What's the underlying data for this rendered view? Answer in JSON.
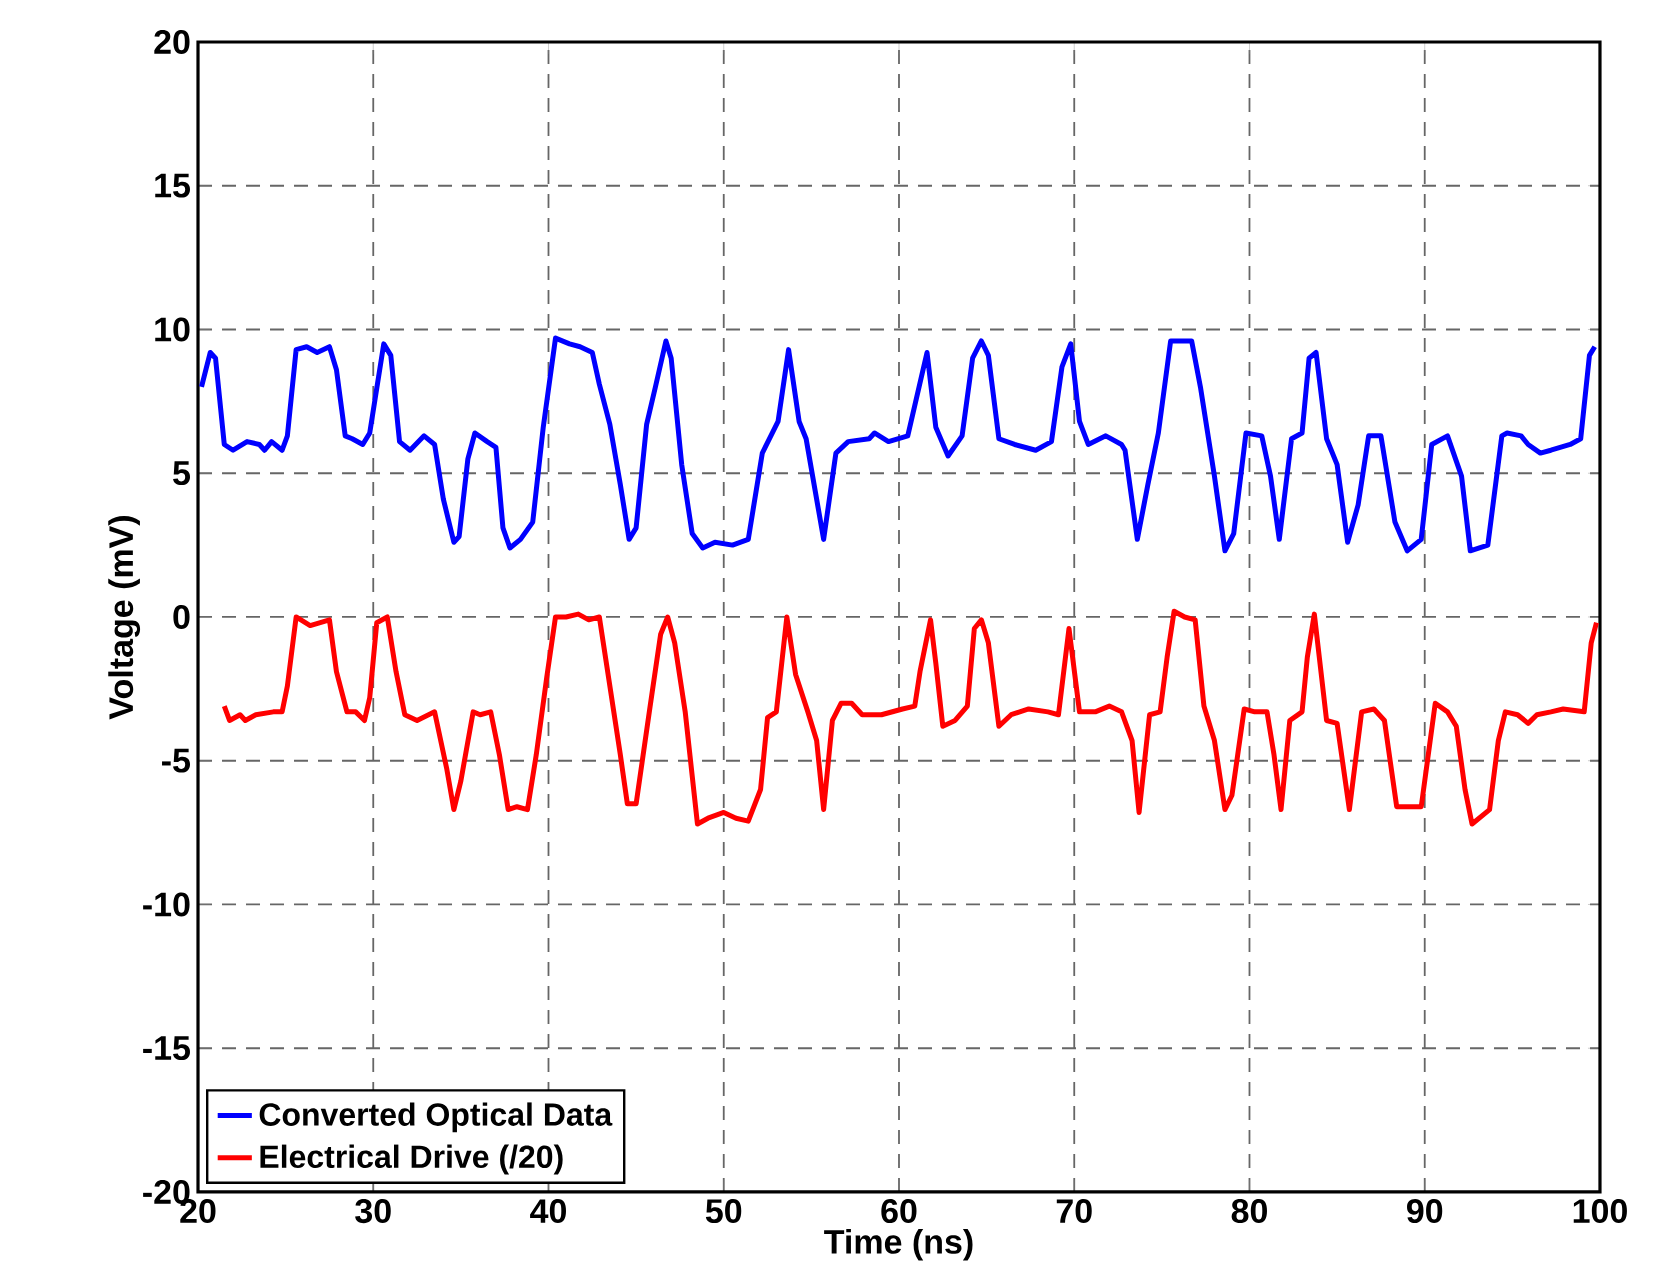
{
  "chart_data": {
    "type": "line",
    "xlabel": "Time (ns)",
    "ylabel": "Voltage (mV)",
    "xlim": [
      20,
      100
    ],
    "ylim": [
      -20,
      20
    ],
    "xticks": [
      20,
      30,
      40,
      50,
      60,
      70,
      80,
      90,
      100
    ],
    "yticks": [
      -20,
      -15,
      -10,
      -5,
      0,
      5,
      10,
      15,
      20
    ],
    "grid": true,
    "legend": "bottom left",
    "line_style": "solid",
    "marker": "none",
    "series": [
      {
        "name": "Converted Optical Data",
        "color": "#0000ff",
        "x": [
          20.2,
          20.7,
          21.0,
          21.5,
          22.0,
          22.8,
          23.5,
          23.8,
          24.2,
          24.8,
          25.1,
          25.6,
          26.2,
          26.8,
          27.5,
          27.9,
          28.4,
          28.8,
          29.4,
          29.8,
          30.6,
          31.0,
          31.5,
          32.1,
          32.9,
          33.5,
          34.0,
          34.6,
          34.9,
          35.4,
          35.8,
          36.5,
          37.0,
          37.4,
          37.8,
          38.4,
          39.1,
          39.7,
          40.4,
          41.2,
          41.8,
          42.5,
          42.9,
          43.5,
          44.1,
          44.6,
          45.0,
          45.6,
          46.1,
          46.7,
          47.0,
          47.6,
          48.2,
          48.8,
          49.5,
          50.5,
          51.4,
          52.2,
          53.1,
          53.7,
          54.3,
          54.7,
          55.7,
          56.4,
          57.1,
          58.3,
          58.6,
          59.4,
          60.5,
          61.6,
          62.1,
          62.8,
          63.6,
          64.2,
          64.7,
          65.1,
          65.7,
          66.6,
          67.8,
          68.7,
          69.3,
          69.8,
          70.3,
          70.8,
          71.8,
          72.7,
          72.9,
          73.6,
          74.2,
          74.8,
          75.5,
          76.7,
          77.2,
          78.0,
          78.6,
          79.1,
          79.8,
          80.7,
          81.2,
          81.7,
          82.4,
          83.0,
          83.4,
          83.8,
          84.4,
          85.0,
          85.6,
          86.2,
          86.8,
          87.5,
          88.3,
          89.0,
          89.8,
          90.4,
          91.3,
          92.1,
          92.6,
          93.6,
          94.4,
          94.7,
          95.5,
          95.9,
          96.6,
          97.2,
          98.3,
          98.9,
          99.4,
          99.7
        ],
        "values": [
          8.0,
          9.2,
          9.0,
          6.0,
          5.8,
          6.1,
          6.0,
          5.8,
          6.1,
          5.8,
          6.3,
          9.3,
          9.4,
          9.2,
          9.4,
          8.6,
          6.3,
          6.2,
          6.0,
          6.4,
          9.5,
          9.1,
          6.1,
          5.8,
          6.3,
          6.0,
          4.1,
          2.6,
          2.8,
          5.5,
          6.4,
          6.1,
          5.9,
          3.1,
          2.4,
          2.7,
          3.3,
          6.6,
          9.7,
          9.5,
          9.4,
          9.2,
          8.1,
          6.7,
          4.6,
          2.7,
          3.1,
          6.7,
          8.0,
          9.6,
          9.0,
          5.3,
          2.9,
          2.4,
          2.6,
          2.5,
          2.7,
          5.7,
          6.8,
          9.3,
          6.8,
          6.2,
          2.7,
          5.7,
          6.1,
          6.2,
          6.4,
          6.1,
          6.3,
          9.2,
          6.6,
          5.6,
          6.3,
          9.0,
          9.6,
          9.1,
          6.2,
          6.0,
          5.8,
          6.1,
          8.7,
          9.5,
          6.8,
          6.0,
          6.3,
          6.0,
          5.8,
          2.7,
          4.6,
          6.4,
          9.6,
          9.6,
          8.0,
          4.9,
          2.3,
          2.9,
          6.4,
          6.3,
          4.9,
          2.7,
          6.2,
          6.4,
          9.0,
          9.2,
          6.2,
          5.3,
          2.6,
          3.9,
          6.3,
          6.3,
          3.3,
          2.3,
          2.7,
          6.0,
          6.3,
          4.9,
          2.3,
          2.5,
          6.3,
          6.4,
          6.3,
          6.0,
          5.7,
          5.8,
          6.0,
          6.2,
          9.1,
          9.4
        ]
      },
      {
        "name": "Electrical Drive (/20)",
        "color": "#ff0000",
        "x": [
          21.5,
          21.8,
          22.4,
          22.7,
          23.3,
          24.3,
          24.8,
          25.1,
          25.6,
          26.4,
          27.5,
          27.9,
          28.5,
          29.0,
          29.5,
          29.8,
          30.2,
          30.8,
          31.3,
          31.8,
          32.5,
          33.5,
          34.2,
          34.6,
          35.0,
          35.7,
          36.1,
          36.7,
          37.2,
          37.7,
          38.2,
          38.8,
          39.3,
          39.9,
          40.4,
          41.0,
          41.7,
          42.3,
          42.9,
          43.5,
          44.1,
          44.5,
          45.0,
          45.8,
          46.4,
          46.8,
          47.2,
          47.8,
          48.5,
          49.1,
          50.0,
          50.7,
          51.4,
          52.1,
          52.5,
          53.0,
          53.6,
          54.1,
          54.8,
          55.3,
          55.7,
          56.2,
          56.7,
          57.3,
          57.9,
          59.0,
          60.2,
          60.9,
          61.2,
          61.8,
          62.1,
          62.5,
          63.2,
          63.9,
          64.3,
          64.7,
          65.1,
          65.7,
          66.4,
          67.4,
          68.5,
          69.1,
          69.7,
          70.3,
          71.2,
          72.0,
          72.7,
          73.3,
          73.7,
          74.3,
          74.9,
          75.3,
          75.7,
          76.3,
          76.9,
          77.4,
          78.0,
          78.6,
          79.0,
          79.7,
          80.3,
          81.0,
          81.4,
          81.8,
          82.3,
          83.0,
          83.3,
          83.7,
          84.4,
          85.0,
          85.7,
          86.4,
          87.1,
          87.7,
          88.4,
          88.8,
          89.8,
          90.6,
          91.3,
          91.8,
          92.3,
          92.7,
          93.7,
          94.2,
          94.6,
          95.3,
          95.9,
          96.4,
          97.2,
          97.9,
          99.1,
          99.5,
          99.8
        ],
        "values": [
          -3.1,
          -3.6,
          -3.4,
          -3.6,
          -3.4,
          -3.3,
          -3.3,
          -2.4,
          0.0,
          -0.3,
          -0.1,
          -1.9,
          -3.3,
          -3.3,
          -3.6,
          -2.8,
          -0.2,
          0.0,
          -1.9,
          -3.4,
          -3.6,
          -3.3,
          -5.3,
          -6.7,
          -5.7,
          -3.3,
          -3.4,
          -3.3,
          -4.8,
          -6.7,
          -6.6,
          -6.7,
          -4.8,
          -2.1,
          0.0,
          0.0,
          0.1,
          -0.1,
          0.0,
          -2.4,
          -4.8,
          -6.5,
          -6.5,
          -3.1,
          -0.6,
          0.0,
          -0.9,
          -3.3,
          -7.2,
          -7.0,
          -6.8,
          -7.0,
          -7.1,
          -6.0,
          -3.5,
          -3.3,
          0.0,
          -2.0,
          -3.3,
          -4.3,
          -6.7,
          -3.6,
          -3.0,
          -3.0,
          -3.4,
          -3.4,
          -3.2,
          -3.1,
          -1.9,
          -0.1,
          -1.6,
          -3.8,
          -3.6,
          -3.1,
          -0.4,
          -0.1,
          -0.9,
          -3.8,
          -3.4,
          -3.2,
          -3.3,
          -3.4,
          -0.4,
          -3.3,
          -3.3,
          -3.1,
          -3.3,
          -4.3,
          -6.8,
          -3.4,
          -3.3,
          -1.4,
          0.2,
          0.0,
          -0.1,
          -3.1,
          -4.3,
          -6.7,
          -6.2,
          -3.2,
          -3.3,
          -3.3,
          -4.8,
          -6.7,
          -3.6,
          -3.3,
          -1.4,
          0.1,
          -3.6,
          -3.7,
          -6.7,
          -3.3,
          -3.2,
          -3.6,
          -6.6,
          -6.6,
          -6.6,
          -3.0,
          -3.3,
          -3.8,
          -6.0,
          -7.2,
          -6.7,
          -4.3,
          -3.3,
          -3.4,
          -3.7,
          -3.4,
          -3.3,
          -3.2,
          -3.3,
          -0.9,
          -0.2
        ]
      }
    ]
  }
}
